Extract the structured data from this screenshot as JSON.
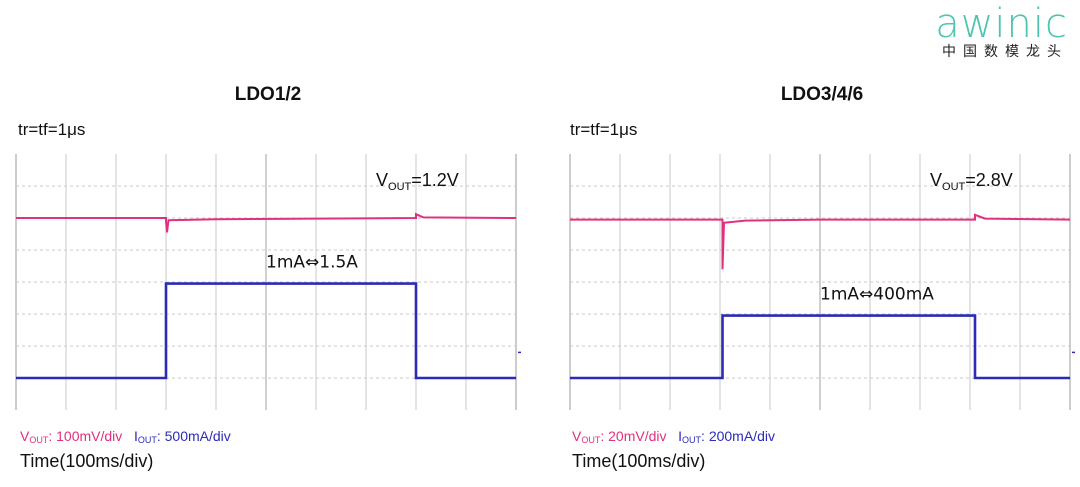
{
  "logo": {
    "word": "awinic",
    "subtitle": "中国数模龙头",
    "color": "#4fc4b0"
  },
  "colors": {
    "vout": "#e0307f",
    "iout": "#2b2bb8",
    "grid": "#c8c8c8",
    "frame": "#999999"
  },
  "chart_data": [
    {
      "type": "line",
      "title": "LDO1/2",
      "subtitle": "tr=tf=1μs",
      "xlabel": "Time(100ms/div)",
      "x_divisions": 10,
      "y_divisions": 8,
      "annotations": {
        "vout_prefix": "V",
        "vout_sub": "OUT",
        "vout_value": "=1.2V",
        "load_step": "1mA⇔1.5A"
      },
      "legend": {
        "v_prefix": "V",
        "v_sub": "OUT",
        "v_scale": ": 100mV/div",
        "i_prefix": "I",
        "i_sub": "OUT",
        "i_scale": ": 500mA/div"
      },
      "series": [
        {
          "name": "VOUT",
          "points": [
            [
              0,
              2.0
            ],
            [
              3.0,
              2.0
            ],
            [
              3.0,
              2.1
            ],
            [
              3.02,
              2.45
            ],
            [
              3.05,
              2.07
            ],
            [
              4.0,
              2.04
            ],
            [
              6.0,
              2.02
            ],
            [
              8.0,
              2.0
            ],
            [
              8.0,
              1.88
            ],
            [
              8.15,
              1.98
            ],
            [
              10.0,
              2.0
            ]
          ]
        },
        {
          "name": "IOUT",
          "points": [
            [
              0,
              7.0
            ],
            [
              3.0,
              7.0
            ],
            [
              3.0,
              4.05
            ],
            [
              8.0,
              4.05
            ],
            [
              8.0,
              7.0
            ],
            [
              10.0,
              7.0
            ]
          ]
        }
      ]
    },
    {
      "type": "line",
      "title": "LDO3/4/6",
      "subtitle": "tr=tf=1μs",
      "xlabel": "Time(100ms/div)",
      "x_divisions": 10,
      "y_divisions": 8,
      "annotations": {
        "vout_prefix": "V",
        "vout_sub": "OUT",
        "vout_value": "=2.8V",
        "load_step": "1mA⇔400mA"
      },
      "legend": {
        "v_prefix": "V",
        "v_sub": "OUT",
        "v_scale": ": 20mV/div",
        "i_prefix": "I",
        "i_sub": "OUT",
        "i_scale": ": 200mA/div"
      },
      "series": [
        {
          "name": "VOUT",
          "points": [
            [
              0,
              2.05
            ],
            [
              3.05,
              2.05
            ],
            [
              3.05,
              3.6
            ],
            [
              3.08,
              2.15
            ],
            [
              3.5,
              2.08
            ],
            [
              5.0,
              2.05
            ],
            [
              8.1,
              2.05
            ],
            [
              8.1,
              1.9
            ],
            [
              8.3,
              2.02
            ],
            [
              10.0,
              2.05
            ]
          ]
        },
        {
          "name": "IOUT",
          "points": [
            [
              0,
              7.0
            ],
            [
              3.05,
              7.0
            ],
            [
              3.05,
              5.05
            ],
            [
              8.1,
              5.05
            ],
            [
              8.1,
              7.0
            ],
            [
              10.0,
              7.0
            ]
          ]
        }
      ]
    }
  ]
}
